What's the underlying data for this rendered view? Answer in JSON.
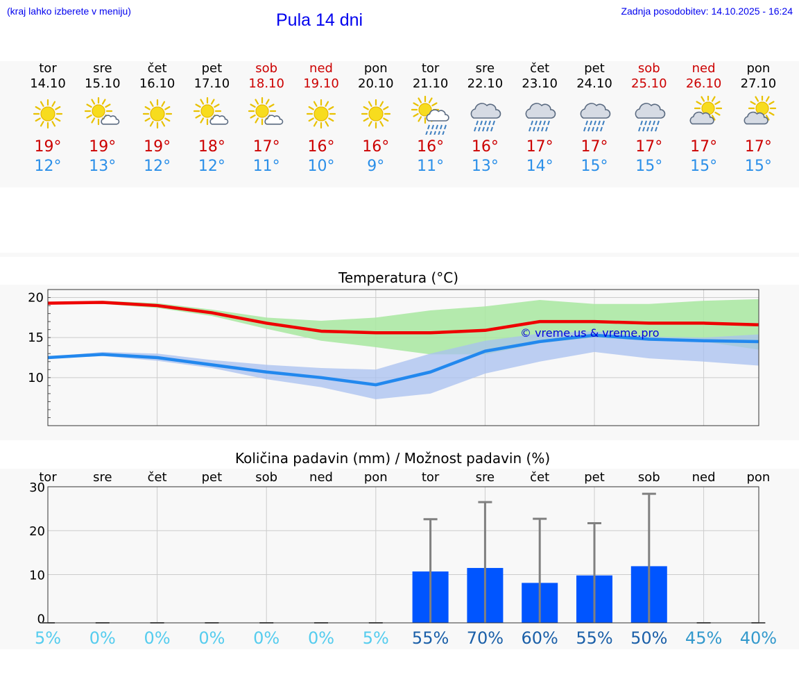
{
  "header": {
    "hint": "(kraj lahko izberete v meniju)",
    "title": "Pula 14 dni",
    "updated": "Zadnja posodobitev: 14.10.2025 - 16:24"
  },
  "colors": {
    "max_temp": "#ee0000",
    "min_temp": "#2288ee",
    "max_band": "#a8e8a0",
    "min_band": "#a8c0f0",
    "precip_bar": "#0055ff",
    "whisker": "#808080"
  },
  "days": [
    {
      "name": "tor",
      "date": "14.10",
      "weekend": false,
      "icon": "sun-icon",
      "max": "19°",
      "min": "12°"
    },
    {
      "name": "sre",
      "date": "15.10",
      "weekend": false,
      "icon": "sun-cloud-icon",
      "max": "19°",
      "min": "13°"
    },
    {
      "name": "čet",
      "date": "16.10",
      "weekend": false,
      "icon": "sun-icon",
      "max": "19°",
      "min": "12°"
    },
    {
      "name": "pet",
      "date": "17.10",
      "weekend": false,
      "icon": "sun-cloud-icon",
      "max": "18°",
      "min": "12°"
    },
    {
      "name": "sob",
      "date": "18.10",
      "weekend": true,
      "icon": "sun-cloud-icon",
      "max": "17°",
      "min": "11°"
    },
    {
      "name": "ned",
      "date": "19.10",
      "weekend": true,
      "icon": "sun-icon",
      "max": "16°",
      "min": "10°"
    },
    {
      "name": "pon",
      "date": "20.10",
      "weekend": false,
      "icon": "sun-icon",
      "max": "16°",
      "min": "9°"
    },
    {
      "name": "tor",
      "date": "21.10",
      "weekend": false,
      "icon": "sun-cloud-rain-icon",
      "max": "16°",
      "min": "11°"
    },
    {
      "name": "sre",
      "date": "22.10",
      "weekend": false,
      "icon": "cloud-rain-icon",
      "max": "16°",
      "min": "13°"
    },
    {
      "name": "čet",
      "date": "23.10",
      "weekend": false,
      "icon": "cloud-rain-icon",
      "max": "17°",
      "min": "14°"
    },
    {
      "name": "pet",
      "date": "24.10",
      "weekend": false,
      "icon": "cloud-rain-icon",
      "max": "17°",
      "min": "15°"
    },
    {
      "name": "sob",
      "date": "25.10",
      "weekend": true,
      "icon": "cloud-rain-icon",
      "max": "17°",
      "min": "15°"
    },
    {
      "name": "ned",
      "date": "26.10",
      "weekend": true,
      "icon": "cloud-sun-icon",
      "max": "17°",
      "min": "15°"
    },
    {
      "name": "pon",
      "date": "27.10",
      "weekend": false,
      "icon": "cloud-sun-icon",
      "max": "17°",
      "min": "15°"
    }
  ],
  "chart_data": [
    {
      "type": "line",
      "title": "Temperatura (°C)",
      "xlabel": "",
      "ylabel": "",
      "x": [
        0,
        1,
        2,
        3,
        4,
        5,
        6,
        7,
        8,
        9,
        10,
        11,
        12,
        13
      ],
      "ylim": [
        4,
        21
      ],
      "yticks": [
        10,
        15,
        20
      ],
      "annotation": "© vreme.us & vreme.pro",
      "series": [
        {
          "name": "max",
          "values": [
            19.3,
            19.4,
            19.0,
            18.1,
            16.8,
            15.8,
            15.6,
            15.6,
            15.9,
            17.0,
            17.0,
            16.8,
            16.8,
            16.6
          ],
          "band_low": [
            19.3,
            19.2,
            18.7,
            17.7,
            16.1,
            14.6,
            13.8,
            12.9,
            12.9,
            14.3,
            15.0,
            14.6,
            14.5,
            13.5
          ],
          "band_high": [
            19.4,
            19.6,
            19.3,
            18.5,
            17.5,
            17.1,
            17.5,
            18.4,
            18.9,
            19.7,
            19.2,
            19.2,
            19.6,
            19.8
          ]
        },
        {
          "name": "min",
          "values": [
            12.5,
            12.9,
            12.5,
            11.6,
            10.7,
            10.0,
            9.1,
            10.7,
            13.3,
            14.5,
            15.3,
            14.8,
            14.6,
            14.5
          ],
          "band_low": [
            12.4,
            12.7,
            12.1,
            11.2,
            9.8,
            8.8,
            7.3,
            8.0,
            10.5,
            12.0,
            13.2,
            12.4,
            12.0,
            11.5
          ],
          "band_high": [
            12.6,
            13.2,
            13.0,
            12.2,
            11.6,
            11.2,
            11.0,
            13.0,
            14.6,
            15.5,
            15.8,
            15.1,
            15.0,
            15.4
          ]
        }
      ]
    },
    {
      "type": "bar",
      "title": "Količina padavin (mm) / Možnost padavin (%)",
      "categories": [
        "tor",
        "sre",
        "čet",
        "pet",
        "sob",
        "ned",
        "pon",
        "tor",
        "sre",
        "čet",
        "pet",
        "sob",
        "ned",
        "pon"
      ],
      "ylim": [
        -1,
        30
      ],
      "yticks": [
        0,
        10,
        20,
        30
      ],
      "values": [
        0,
        0,
        0,
        0,
        0,
        0,
        0,
        10.7,
        11.5,
        8.1,
        9.8,
        11.9,
        0,
        0
      ],
      "whisker_high": [
        0,
        0,
        0,
        0,
        0,
        0,
        0,
        22.6,
        26.5,
        22.7,
        21.7,
        28.4,
        0,
        0
      ],
      "probability": [
        "5%",
        "0%",
        "0%",
        "0%",
        "0%",
        "0%",
        "5%",
        "55%",
        "70%",
        "60%",
        "55%",
        "50%",
        "45%",
        "40%"
      ],
      "probability_colors": [
        "#55ccee",
        "#55ccee",
        "#55ccee",
        "#55ccee",
        "#55ccee",
        "#55ccee",
        "#55ccee",
        "#1a5fa8",
        "#1a5fa8",
        "#1a5fa8",
        "#1a5fa8",
        "#1a5fa8",
        "#3399cc",
        "#3399cc"
      ]
    }
  ]
}
